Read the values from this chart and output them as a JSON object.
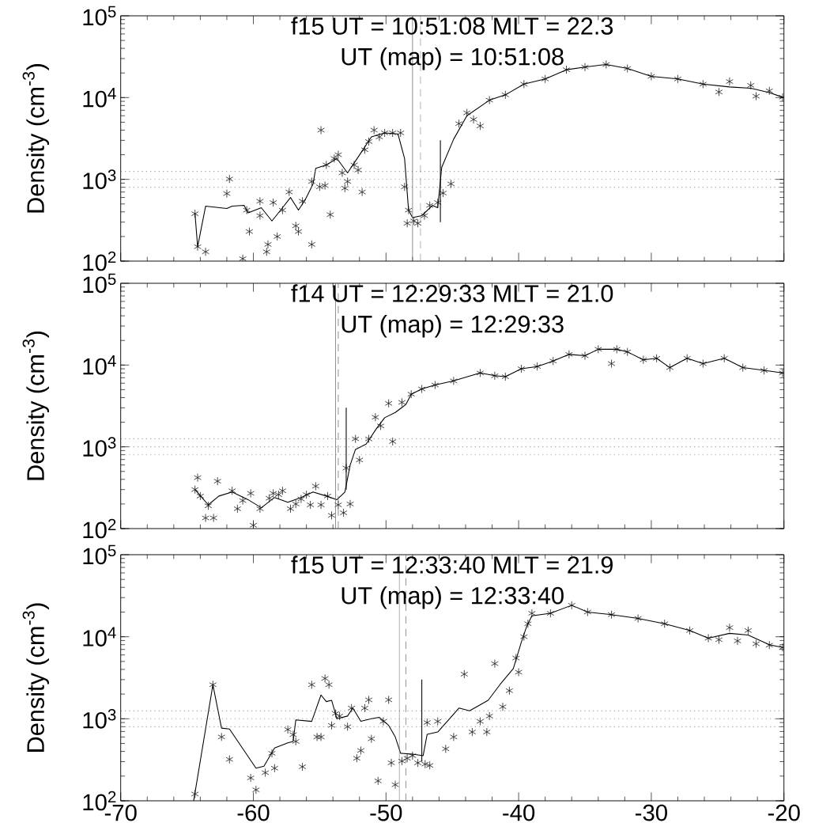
{
  "chart_data": [
    {
      "type": "scatter",
      "title": "f15 UT = 10:51:08 MLT = 22.3",
      "subtitle": "UT (map) = 10:51:08",
      "ylabel": "Density (cm$^{-3}$)",
      "log": "y",
      "tick_labels": "y",
      "xlim": [
        -70,
        -20
      ],
      "ylim": [
        100,
        100000
      ],
      "xticks": [
        -70,
        -60,
        -50,
        -40,
        -30,
        -20
      ],
      "yticks": [
        {
          "value": 100,
          "label": "10$^{2}$"
        },
        {
          "value": 1000,
          "label": "10$^{3}$"
        },
        {
          "value": 10000,
          "label": "10$^{4}$"
        },
        {
          "value": 100000,
          "label": "10$^{5}$"
        }
      ],
      "ref_lines": [
        {
          "axis": "y",
          "value": 1250,
          "color": "#808080",
          "line_style": "dotted"
        },
        {
          "axis": "y",
          "value": 1000,
          "color": "#808080",
          "line_style": "dotted"
        },
        {
          "axis": "y",
          "value": 800,
          "color": "#808080",
          "line_style": "dotted"
        },
        {
          "axis": "x",
          "value": -48.0,
          "color": "#707070",
          "line_style": "solid"
        },
        {
          "axis": "x",
          "value": -47.4,
          "color": "#707070",
          "line_style": "dashed"
        }
      ],
      "series": [
        {
          "marker": "cross",
          "color": "#1a1a1a",
          "x": [
            -64.4,
            -64.2,
            -63.6,
            -62.0,
            -61.8,
            -60.8,
            -60.5,
            -60.3,
            -59.5,
            -59.5,
            -59.0,
            -58.9,
            -58.5,
            -58.2,
            -57.8,
            -57.3,
            -56.8,
            -56.6,
            -56.3,
            -55.6,
            -55.6,
            -55.0,
            -54.9,
            -54.6,
            -54.5,
            -54.2,
            -53.9,
            -53.6,
            -53.3,
            -53.1,
            -52.9,
            -52.4,
            -52.1,
            -51.8,
            -51.6,
            -51.3,
            -50.9,
            -50.5,
            -50.1,
            -49.5,
            -48.9,
            -48.6,
            -48.4,
            -48.3,
            -47.9,
            -47.6,
            -47.1,
            -46.7,
            -46.1,
            -45.7,
            -45.1,
            -44.5,
            -43.9,
            -43.4,
            -42.9,
            -42.2,
            -41.0,
            -39.6,
            -38.0,
            -36.4,
            -35.0,
            -33.4,
            -31.8,
            -30.0,
            -28.0,
            -26.1,
            -24.9,
            -24.1,
            -22.5,
            -22.1,
            -21.1,
            -20.1
          ],
          "values": [
            380,
            150,
            130,
            670,
            1010,
            107,
            420,
            230,
            540,
            360,
            130,
            160,
            520,
            200,
            420,
            700,
            270,
            230,
            540,
            160,
            940,
            810,
            4000,
            840,
            1500,
            370,
            1800,
            2000,
            1200,
            780,
            940,
            1500,
            1300,
            700,
            2300,
            2900,
            4000,
            3300,
            3700,
            3700,
            3700,
            810,
            290,
            420,
            310,
            290,
            360,
            480,
            520,
            680,
            880,
            4800,
            6500,
            5400,
            4500,
            9300,
            10800,
            14600,
            16900,
            21900,
            23600,
            25400,
            22700,
            18200,
            16900,
            14600,
            11700,
            15700,
            14100,
            10400,
            12100,
            10100
          ]
        },
        {
          "type": "line",
          "marker": "none",
          "color": "#000000",
          "x": [
            -64.4,
            -64.2,
            -63.6,
            -62.0,
            -61.6,
            -60.7,
            -60.4,
            -59.4,
            -58.6,
            -57.8,
            -57.2,
            -56.6,
            -56.1,
            -55.5,
            -55.3,
            -54.5,
            -53.7,
            -52.9,
            -51.9,
            -51.1,
            -50.1,
            -49.1,
            -48.6,
            -48.3,
            -48.0,
            -47.3,
            -46.5,
            -46.1,
            -45.8,
            -44.9,
            -43.9,
            -42.2,
            -41.0,
            -39.6,
            -38.0,
            -36.4,
            -35.0,
            -33.4,
            -31.8,
            -30.0,
            -28.0,
            -26.1,
            -24.1,
            -22.5,
            -21.1,
            -20.1
          ],
          "values": [
            380,
            150,
            470,
            440,
            470,
            480,
            390,
            450,
            310,
            450,
            600,
            420,
            560,
            880,
            1360,
            1500,
            1800,
            1200,
            2100,
            3300,
            3700,
            3600,
            1800,
            420,
            340,
            360,
            480,
            450,
            1400,
            3100,
            6000,
            9300,
            10800,
            14600,
            16900,
            21900,
            23600,
            25400,
            22700,
            18200,
            16900,
            14600,
            13500,
            13000,
            11500,
            10100
          ]
        },
        {
          "type": "line",
          "marker": "none",
          "color": "#000000",
          "x": [
            -45.9,
            -45.9
          ],
          "values": [
            300,
            3000
          ]
        }
      ]
    },
    {
      "type": "scatter",
      "title": "f14 UT = 12:29:33 MLT = 21.0",
      "subtitle": "UT (map) = 12:29:33",
      "ylabel": "Density (cm$^{-3}$)",
      "log": "y",
      "tick_labels": "y",
      "xlim": [
        -70,
        -20
      ],
      "ylim": [
        100,
        100000
      ],
      "xticks": [
        -70,
        -60,
        -50,
        -40,
        -30,
        -20
      ],
      "yticks": [
        {
          "value": 100,
          "label": "10$^{2}$"
        },
        {
          "value": 1000,
          "label": "10$^{3}$"
        },
        {
          "value": 10000,
          "label": "10$^{4}$"
        },
        {
          "value": 100000,
          "label": "10$^{5}$"
        }
      ],
      "ref_lines": [
        {
          "axis": "y",
          "value": 1250,
          "color": "#808080",
          "line_style": "dotted"
        },
        {
          "axis": "y",
          "value": 1000,
          "color": "#808080",
          "line_style": "dotted"
        },
        {
          "axis": "y",
          "value": 800,
          "color": "#808080",
          "line_style": "dotted"
        },
        {
          "axis": "x",
          "value": -53.8,
          "color": "#707070",
          "line_style": "solid"
        },
        {
          "axis": "x",
          "value": -53.6,
          "color": "#707070",
          "line_style": "dashed"
        }
      ],
      "series": [
        {
          "marker": "cross",
          "color": "#1a1a1a",
          "x": [
            -64.4,
            -64.2,
            -64.0,
            -63.6,
            -63.4,
            -63.0,
            -62.7,
            -61.6,
            -61.2,
            -60.8,
            -60.2,
            -60.0,
            -59.5,
            -58.8,
            -58.5,
            -58.1,
            -57.8,
            -57.2,
            -56.8,
            -56.4,
            -56.0,
            -55.7,
            -55.3,
            -54.9,
            -54.4,
            -54.1,
            -53.6,
            -53.2,
            -53.0,
            -52.7,
            -52.3,
            -52.0,
            -51.3,
            -50.8,
            -50.4,
            -49.8,
            -49.5,
            -48.8,
            -48.1,
            -47.3,
            -46.3,
            -44.9,
            -42.9,
            -41.8,
            -41.0,
            -39.8,
            -38.6,
            -37.4,
            -36.2,
            -35.0,
            -34.0,
            -33.0,
            -32.6,
            -31.8,
            -30.6,
            -29.6,
            -28.6,
            -27.3,
            -26.1,
            -24.5,
            -23.1,
            -21.5,
            -20.1
          ],
          "values": [
            300,
            420,
            250,
            135,
            190,
            135,
            380,
            290,
            175,
            220,
            270,
            110,
            175,
            235,
            270,
            260,
            290,
            175,
            200,
            230,
            260,
            195,
            330,
            195,
            250,
            145,
            195,
            156,
            550,
            200,
            1250,
            690,
            1250,
            2300,
            1800,
            3400,
            1160,
            3500,
            4400,
            5100,
            5700,
            6400,
            8000,
            7400,
            7200,
            9000,
            9600,
            11200,
            13500,
            13000,
            15600,
            10400,
            15600,
            14500,
            11600,
            12100,
            9300,
            12100,
            10400,
            12100,
            9300,
            8600,
            8000
          ]
        },
        {
          "type": "line",
          "marker": "none",
          "color": "#000000",
          "x": [
            -64.4,
            -63.4,
            -62.6,
            -61.6,
            -60.4,
            -59.4,
            -58.4,
            -57.4,
            -56.4,
            -55.5,
            -54.5,
            -53.7,
            -53.1,
            -52.7,
            -52.3,
            -51.5,
            -50.7,
            -50.1,
            -49.3,
            -48.5,
            -48.1,
            -47.3,
            -46.3,
            -44.9,
            -42.9,
            -41.8,
            -41.0,
            -39.8,
            -38.6,
            -37.4,
            -36.2,
            -35.0,
            -34.0,
            -32.6,
            -31.8,
            -30.6,
            -29.6,
            -28.6,
            -27.3,
            -26.1,
            -24.5,
            -23.1,
            -21.5,
            -20.1
          ],
          "values": [
            300,
            195,
            250,
            280,
            226,
            180,
            240,
            210,
            240,
            280,
            250,
            226,
            280,
            600,
            930,
            1080,
            1690,
            2270,
            2630,
            3300,
            4400,
            5100,
            5700,
            6400,
            8000,
            7400,
            7200,
            9000,
            9600,
            11200,
            13500,
            13000,
            15600,
            15600,
            14500,
            11600,
            12100,
            9300,
            12100,
            10400,
            12100,
            9300,
            8600,
            8000
          ]
        },
        {
          "type": "line",
          "marker": "none",
          "color": "#000000",
          "x": [
            -53.0,
            -53.0
          ],
          "values": [
            300,
            3000
          ]
        }
      ]
    },
    {
      "type": "scatter",
      "title": "f15 UT = 12:33:40 MLT = 21.9",
      "subtitle": "UT (map) = 12:33:40",
      "ylabel": "Density (cm$^{-3}$)",
      "log": "y",
      "xlim": [
        -70,
        -20
      ],
      "ylim": [
        100,
        100000
      ],
      "xticks": [
        -70,
        -60,
        -50,
        -40,
        -30,
        -20
      ],
      "yticks": [
        {
          "value": 100,
          "label": "10$^{2}$"
        },
        {
          "value": 1000,
          "label": "10$^{3}$"
        },
        {
          "value": 10000,
          "label": "10$^{4}$"
        },
        {
          "value": 100000,
          "label": "10$^{5}$"
        }
      ],
      "ref_lines": [
        {
          "axis": "y",
          "value": 1250,
          "color": "#808080",
          "line_style": "dotted"
        },
        {
          "axis": "y",
          "value": 1000,
          "color": "#808080",
          "line_style": "dotted"
        },
        {
          "axis": "y",
          "value": 800,
          "color": "#808080",
          "line_style": "dotted"
        },
        {
          "axis": "x",
          "value": -49.0,
          "color": "#707070",
          "line_style": "solid"
        },
        {
          "axis": "x",
          "value": -48.5,
          "color": "#707070",
          "line_style": "dashed"
        }
      ],
      "series": [
        {
          "marker": "cross",
          "color": "#1a1a1a",
          "x": [
            -64.4,
            -63.05,
            -62.4,
            -61.8,
            -60.2,
            -59.8,
            -59.1,
            -58.6,
            -58.4,
            -57.4,
            -57.0,
            -56.8,
            -56.3,
            -55.6,
            -55.2,
            -54.9,
            -54.6,
            -54.3,
            -54.1,
            -53.8,
            -53.5,
            -52.9,
            -52.6,
            -52.2,
            -51.9,
            -51.6,
            -51.3,
            -51.1,
            -50.6,
            -50.2,
            -49.8,
            -49.6,
            -49.3,
            -48.8,
            -48.4,
            -48.0,
            -47.6,
            -47.05,
            -46.9,
            -46.7,
            -46.1,
            -45.5,
            -44.9,
            -44.1,
            -43.5,
            -42.9,
            -42.4,
            -42.2,
            -41.8,
            -41.2,
            -40.7,
            -40.2,
            -40.0,
            -39.6,
            -39.3,
            -39.0,
            -37.6,
            -36.0,
            -34.8,
            -33.0,
            -31.0,
            -29.0,
            -27.1,
            -25.7,
            -24.9,
            -24.1,
            -23.5,
            -22.7,
            -22.1,
            -21.1,
            -20.1
          ],
          "values": [
            121,
            2600,
            600,
            320,
            190,
            136,
            220,
            380,
            250,
            740,
            640,
            530,
            260,
            2600,
            600,
            600,
            3100,
            2600,
            830,
            1160,
            1080,
            800,
            1350,
            330,
            410,
            1350,
            1700,
            570,
            175,
            930,
            1700,
            290,
            157,
            305,
            330,
            355,
            290,
            280,
            900,
            270,
            930,
            430,
            600,
            3500,
            690,
            930,
            690,
            1080,
            4700,
            1400,
            2200,
            5500,
            3700,
            10000,
            14400,
            19300,
            19300,
            24200,
            20000,
            18600,
            16700,
            14400,
            11900,
            9600,
            9200,
            12900,
            8900,
            11900,
            8200,
            7900,
            7400
          ]
        },
        {
          "type": "line",
          "marker": "none",
          "color": "#000000",
          "x": [
            -64.5,
            -63.05,
            -62.4,
            -61.8,
            -59.8,
            -59.2,
            -58.4,
            -57.4,
            -57.0,
            -56.8,
            -55.6,
            -54.9,
            -54.5,
            -54.1,
            -53.7,
            -52.9,
            -52.5,
            -51.9,
            -51.1,
            -50.5,
            -49.8,
            -49.3,
            -48.9,
            -48.0,
            -47.2,
            -46.9,
            -46.1,
            -44.5,
            -43.7,
            -42.3,
            -41.4,
            -40.4,
            -39.8,
            -39.4,
            -39.0,
            -37.6,
            -36.0,
            -34.8,
            -33.0,
            -31.0,
            -29.0,
            -27.1,
            -25.7,
            -24.1,
            -22.7,
            -21.1,
            -20.1
          ],
          "values": [
            100,
            2600,
            770,
            750,
            250,
            264,
            440,
            510,
            530,
            970,
            930,
            1950,
            1620,
            1680,
            1000,
            1080,
            1350,
            930,
            1000,
            1040,
            830,
            600,
            380,
            370,
            355,
            645,
            690,
            1350,
            1250,
            1680,
            2620,
            4090,
            8580,
            13300,
            18000,
            19300,
            24200,
            20000,
            18600,
            16700,
            14400,
            11900,
            9600,
            11000,
            10500,
            8000,
            7400
          ]
        },
        {
          "type": "line",
          "marker": "none",
          "color": "#000000",
          "x": [
            -47.3,
            -47.3
          ],
          "values": [
            300,
            3000
          ]
        }
      ]
    }
  ]
}
